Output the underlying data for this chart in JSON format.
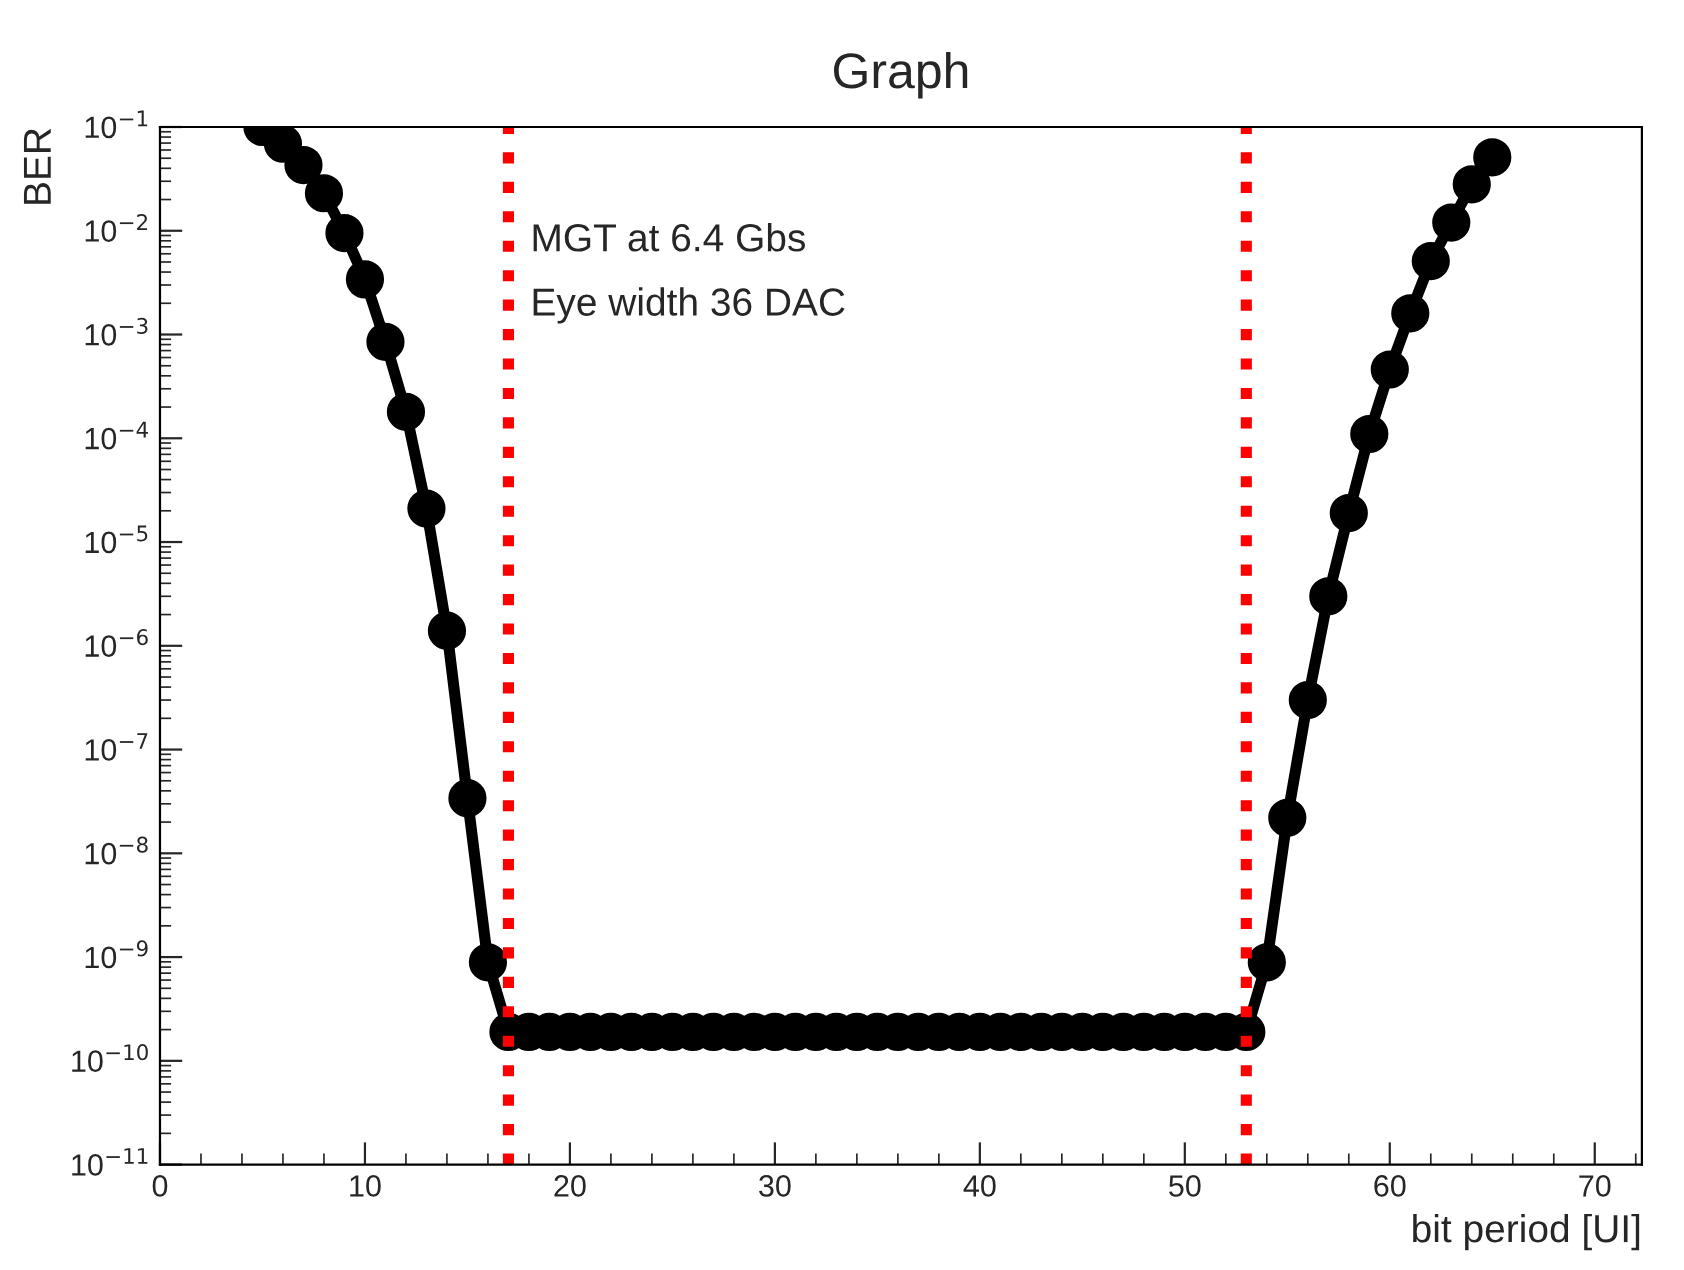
{
  "chart_data": {
    "type": "line",
    "title": "Graph",
    "xlabel": "bit period [UI]",
    "ylabel": "BER",
    "annotations": [
      "MGT at 6.4 Gbs",
      "Eye width 36 DAC"
    ],
    "log": "y",
    "grid": false,
    "marker": "circle",
    "line_style": "solid",
    "xlim": [
      0,
      72.3
    ],
    "xticks": [
      0,
      10,
      20,
      30,
      40,
      50,
      60,
      70
    ],
    "ylim": [
      1e-11,
      0.1
    ],
    "yticks": [
      {
        "value": 1e-11,
        "label": "10$^{−11}$"
      },
      {
        "value": 1e-10,
        "label": "10$^{−10}$"
      },
      {
        "value": 1e-09,
        "label": "10$^{−9}$"
      },
      {
        "value": 1e-08,
        "label": "10$^{−8}$"
      },
      {
        "value": 1e-07,
        "label": "10$^{−7}$"
      },
      {
        "value": 1e-06,
        "label": "10$^{−6}$"
      },
      {
        "value": 1e-05,
        "label": "10$^{−5}$"
      },
      {
        "value": 0.0001,
        "label": "10$^{−4}$"
      },
      {
        "value": 0.001,
        "label": "10$^{−3}$"
      },
      {
        "value": 0.01,
        "label": "10$^{−2}$"
      },
      {
        "value": 0.1,
        "label": "10$^{−1}$"
      }
    ],
    "ref_lines": [
      {
        "axis": "x",
        "value": 17,
        "label": null,
        "color": "#ff0000",
        "line_style": "dotted"
      },
      {
        "axis": "x",
        "value": 53,
        "label": null,
        "color": "#ff0000",
        "line_style": "dotted"
      }
    ],
    "x": [
      5,
      6,
      7,
      8,
      9,
      10,
      11,
      12,
      13,
      14,
      15,
      16,
      17,
      18,
      19,
      20,
      21,
      22,
      23,
      24,
      25,
      26,
      27,
      28,
      29,
      30,
      31,
      32,
      33,
      34,
      35,
      36,
      37,
      38,
      39,
      40,
      41,
      42,
      43,
      44,
      45,
      46,
      47,
      48,
      49,
      50,
      51,
      52,
      53,
      54,
      55,
      56,
      57,
      58,
      59,
      60,
      61,
      62,
      63,
      64,
      65
    ],
    "series": [
      {
        "color": "#000000",
        "values": [
          0.1,
          0.069,
          0.043,
          0.023,
          0.0095,
          0.0034,
          0.00085,
          0.00018,
          2.1e-05,
          1.4e-06,
          3.4e-08,
          8.9e-10,
          1.9e-10,
          1.9e-10,
          1.9e-10,
          1.9e-10,
          1.9e-10,
          1.9e-10,
          1.9e-10,
          1.9e-10,
          1.9e-10,
          1.9e-10,
          1.9e-10,
          1.9e-10,
          1.9e-10,
          1.9e-10,
          1.9e-10,
          1.9e-10,
          1.9e-10,
          1.9e-10,
          1.9e-10,
          1.9e-10,
          1.9e-10,
          1.9e-10,
          1.9e-10,
          1.9e-10,
          1.9e-10,
          1.9e-10,
          1.9e-10,
          1.9e-10,
          1.9e-10,
          1.9e-10,
          1.9e-10,
          1.9e-10,
          1.9e-10,
          1.9e-10,
          1.9e-10,
          1.9e-10,
          1.9e-10,
          8.9e-10,
          2.2e-08,
          3e-07,
          3e-06,
          1.9e-05,
          0.00011,
          0.00046,
          0.0016,
          0.0051,
          0.012,
          0.028,
          0.051
        ]
      }
    ]
  }
}
